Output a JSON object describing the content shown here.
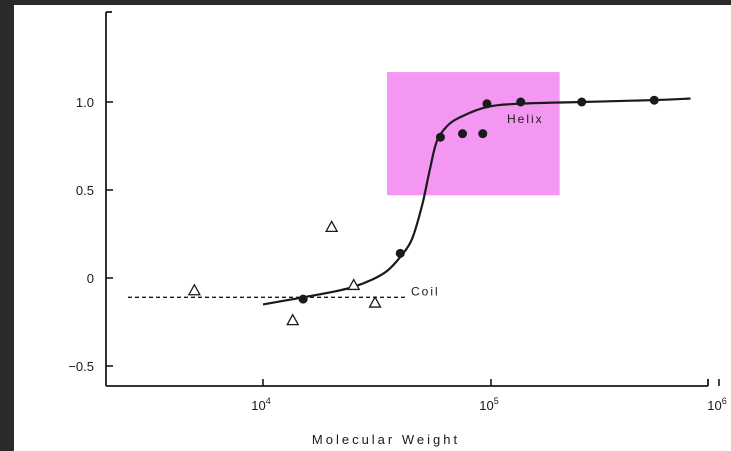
{
  "chart_data": {
    "type": "scatter",
    "title": "",
    "xlabel": "Molecular Weight",
    "ylabel": "",
    "x_scale": "log",
    "xlim": [
      2000,
      1000000
    ],
    "ylim": [
      -0.6,
      1.5
    ],
    "x_ticks": [
      {
        "value": 10000,
        "base": "10",
        "exp": "4"
      },
      {
        "value": 100000,
        "base": "10",
        "exp": "5"
      },
      {
        "value": 1000000,
        "base": "10",
        "exp": "6"
      }
    ],
    "y_ticks": [
      {
        "value": 1.0,
        "label": "1.0"
      },
      {
        "value": 0.5,
        "label": "0.5"
      },
      {
        "value": 0,
        "label": "0"
      },
      {
        "value": -0.5,
        "label": "−0.5"
      }
    ],
    "grid": false,
    "series": [
      {
        "marker": "filled-circle",
        "points": [
          {
            "x": 15000,
            "y": -0.12
          },
          {
            "x": 40000,
            "y": 0.14
          },
          {
            "x": 60000,
            "y": 0.8
          },
          {
            "x": 75000,
            "y": 0.82
          },
          {
            "x": 92000,
            "y": 0.82
          },
          {
            "x": 96000,
            "y": 0.99
          },
          {
            "x": 135000,
            "y": 1.0
          },
          {
            "x": 250000,
            "y": 1.0
          },
          {
            "x": 520000,
            "y": 1.01
          }
        ]
      },
      {
        "marker": "open-triangle",
        "points": [
          {
            "x": 5000,
            "y": -0.07
          },
          {
            "x": 13500,
            "y": -0.24
          },
          {
            "x": 20000,
            "y": 0.29
          },
          {
            "x": 25000,
            "y": -0.04
          },
          {
            "x": 31000,
            "y": -0.14
          }
        ]
      }
    ],
    "fit_curve": [
      {
        "x": 10000,
        "y": -0.15
      },
      {
        "x": 15000,
        "y": -0.11
      },
      {
        "x": 20000,
        "y": -0.08
      },
      {
        "x": 25000,
        "y": -0.05
      },
      {
        "x": 30000,
        "y": -0.01
      },
      {
        "x": 35000,
        "y": 0.04
      },
      {
        "x": 40000,
        "y": 0.12
      },
      {
        "x": 45000,
        "y": 0.22
      },
      {
        "x": 50000,
        "y": 0.42
      },
      {
        "x": 54000,
        "y": 0.62
      },
      {
        "x": 58000,
        "y": 0.78
      },
      {
        "x": 65000,
        "y": 0.87
      },
      {
        "x": 75000,
        "y": 0.92
      },
      {
        "x": 95000,
        "y": 0.97
      },
      {
        "x": 130000,
        "y": 0.99
      },
      {
        "x": 250000,
        "y": 1.0
      },
      {
        "x": 500000,
        "y": 1.01
      },
      {
        "x": 750000,
        "y": 1.02
      }
    ],
    "coil_line": {
      "y": -0.11,
      "x_start": 2000,
      "x_end": 60000,
      "label": "Coil"
    },
    "helix_label": {
      "x": 130000,
      "y": 0.9,
      "text": "Helix"
    },
    "highlight": {
      "x0": 35000,
      "x1": 200000,
      "y0": 0.47,
      "y1": 1.17,
      "color": "#f28cf2"
    },
    "colors": {
      "ink": "#1a1a1a",
      "frame": "#2b2b2b",
      "paper": "#ffffff"
    }
  }
}
